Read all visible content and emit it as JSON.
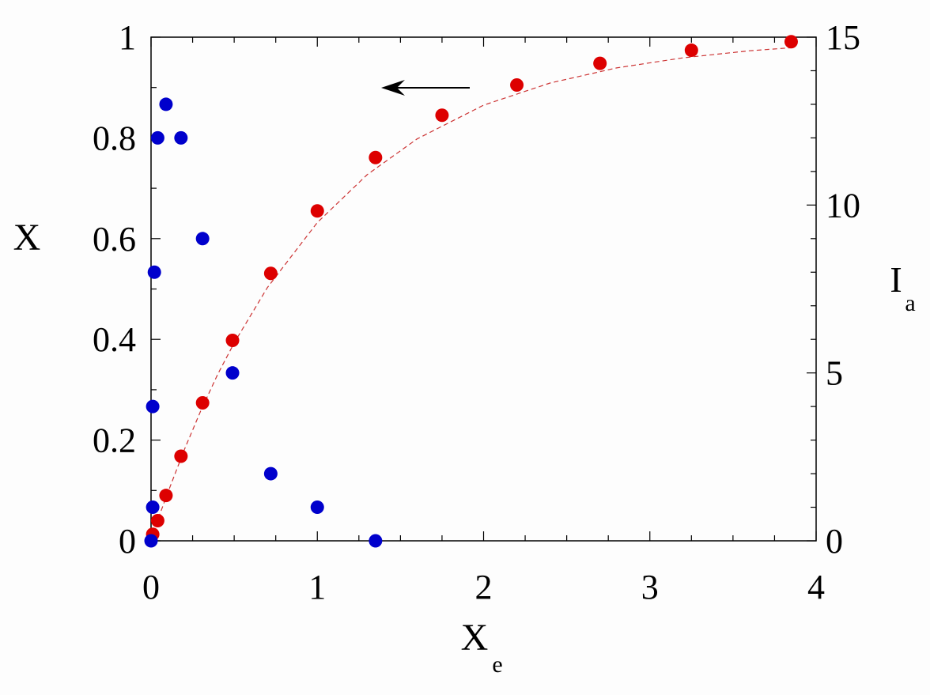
{
  "chart_data": {
    "type": "scatter",
    "title": "",
    "xlabel": {
      "main": "X",
      "sub": "e"
    },
    "ylabel_left": "X",
    "ylabel_right": {
      "main": "I",
      "sub": "a"
    },
    "xlim": [
      0,
      4
    ],
    "ylim_left": [
      0,
      1
    ],
    "ylim_right": [
      0,
      15
    ],
    "x_ticks": [
      "0",
      "1",
      "2",
      "3",
      "4"
    ],
    "y_left_ticks": [
      "0",
      "0.2",
      "0.4",
      "0.6",
      "0.8",
      "1"
    ],
    "y_right_ticks": [
      "0",
      "5",
      "10",
      "15"
    ],
    "grid": false,
    "legend": "none",
    "annotation": {
      "type": "arrow",
      "direction": "left",
      "refers_to_series": "X (left axis)"
    },
    "series": [
      {
        "axis": "left",
        "color": "#dd0000",
        "marker": "circle",
        "points": [
          [
            0.01,
            0.013
          ],
          [
            0.04,
            0.04
          ],
          [
            0.09,
            0.09
          ],
          [
            0.18,
            0.168
          ],
          [
            0.31,
            0.274
          ],
          [
            0.49,
            0.398
          ],
          [
            0.72,
            0.531
          ],
          [
            1.0,
            0.655
          ],
          [
            1.35,
            0.761
          ],
          [
            1.75,
            0.845
          ],
          [
            2.2,
            0.905
          ],
          [
            2.7,
            0.948
          ],
          [
            3.25,
            0.974
          ],
          [
            3.85,
            0.991
          ]
        ]
      },
      {
        "axis": "right",
        "color": "#0000cc",
        "marker": "circle",
        "points": [
          [
            0.0,
            0.0
          ],
          [
            0.01,
            1.0
          ],
          [
            0.01,
            4.0
          ],
          [
            0.02,
            8.0
          ],
          [
            0.04,
            12.0
          ],
          [
            0.09,
            13.0
          ],
          [
            0.18,
            12.0
          ],
          [
            0.31,
            9.0
          ],
          [
            0.49,
            5.0
          ],
          [
            0.72,
            2.0
          ],
          [
            1.0,
            1.0
          ],
          [
            1.35,
            0.0
          ]
        ]
      },
      {
        "axis": "left",
        "color": "#cc3333",
        "style": "dashed-line",
        "points": [
          [
            0.0,
            0.0
          ],
          [
            0.05,
            0.05
          ],
          [
            0.1,
            0.095
          ],
          [
            0.2,
            0.181
          ],
          [
            0.3,
            0.259
          ],
          [
            0.4,
            0.33
          ],
          [
            0.5,
            0.393
          ],
          [
            0.7,
            0.503
          ],
          [
            1.0,
            0.632
          ],
          [
            1.3,
            0.727
          ],
          [
            1.6,
            0.798
          ],
          [
            2.0,
            0.865
          ],
          [
            2.4,
            0.909
          ],
          [
            2.8,
            0.939
          ],
          [
            3.2,
            0.959
          ],
          [
            3.6,
            0.973
          ],
          [
            3.85,
            0.979
          ]
        ]
      }
    ]
  }
}
